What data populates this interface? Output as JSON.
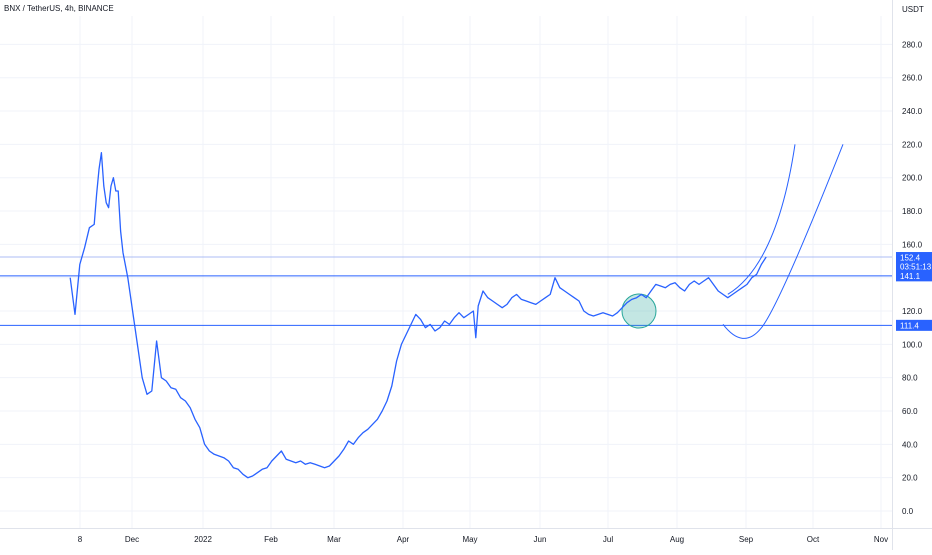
{
  "header": {
    "title": "BNX / TetherUS, 4h, BINANCE"
  },
  "chart_data": {
    "type": "line",
    "title": "BNX / TetherUS, 4h, BINANCE",
    "currency_label": "USDT",
    "y_ticks": [
      "0.0",
      "20.0",
      "40.0",
      "60.0",
      "80.0",
      "100.0",
      "120.0",
      "140.0",
      "160.0",
      "180.0",
      "200.0",
      "220.0",
      "240.0",
      "260.0",
      "280.0"
    ],
    "ylim": [
      -5,
      300
    ],
    "x_ticks": [
      "8",
      "Dec",
      "2022",
      "Feb",
      "Mar",
      "Apr",
      "May",
      "Jun",
      "Jul",
      "Aug",
      "Sep",
      "Oct",
      "Nov"
    ],
    "grid": true,
    "series": [
      {
        "color": "#2962ff",
        "points": [
          [
            -2,
            140
          ],
          [
            0,
            118
          ],
          [
            2,
            148
          ],
          [
            4,
            158
          ],
          [
            6,
            170
          ],
          [
            8,
            172
          ],
          [
            9,
            190
          ],
          [
            10,
            205
          ],
          [
            11,
            215
          ],
          [
            12,
            195
          ],
          [
            13,
            185
          ],
          [
            14,
            182
          ],
          [
            15,
            195
          ],
          [
            16,
            200
          ],
          [
            17,
            192
          ],
          [
            18,
            192
          ],
          [
            19,
            168
          ],
          [
            20,
            155
          ],
          [
            22,
            140
          ],
          [
            24,
            120
          ],
          [
            26,
            100
          ],
          [
            28,
            80
          ],
          [
            30,
            70
          ],
          [
            32,
            72
          ],
          [
            34,
            102
          ],
          [
            36,
            80
          ],
          [
            38,
            78
          ],
          [
            40,
            74
          ],
          [
            42,
            73
          ],
          [
            44,
            68
          ],
          [
            46,
            66
          ],
          [
            48,
            62
          ],
          [
            50,
            55
          ],
          [
            52,
            50
          ],
          [
            54,
            40
          ],
          [
            56,
            36
          ],
          [
            58,
            34
          ],
          [
            60,
            33
          ],
          [
            62,
            32
          ],
          [
            64,
            30
          ],
          [
            66,
            26
          ],
          [
            68,
            25
          ],
          [
            70,
            22
          ],
          [
            72,
            20
          ],
          [
            74,
            21
          ],
          [
            76,
            23
          ],
          [
            78,
            25
          ],
          [
            80,
            26
          ],
          [
            82,
            30
          ],
          [
            84,
            33
          ],
          [
            86,
            36
          ],
          [
            88,
            31
          ],
          [
            90,
            30
          ],
          [
            92,
            29
          ],
          [
            94,
            30
          ],
          [
            96,
            28
          ],
          [
            98,
            29
          ],
          [
            100,
            28
          ],
          [
            102,
            27
          ],
          [
            104,
            26
          ],
          [
            106,
            27
          ],
          [
            108,
            30
          ],
          [
            110,
            33
          ],
          [
            112,
            37
          ],
          [
            114,
            42
          ],
          [
            116,
            40
          ],
          [
            118,
            44
          ],
          [
            120,
            47
          ],
          [
            122,
            49
          ],
          [
            124,
            52
          ],
          [
            126,
            55
          ],
          [
            128,
            60
          ],
          [
            130,
            66
          ],
          [
            132,
            75
          ],
          [
            134,
            90
          ],
          [
            136,
            100
          ],
          [
            138,
            106
          ],
          [
            140,
            112
          ],
          [
            142,
            118
          ],
          [
            144,
            115
          ],
          [
            146,
            110
          ],
          [
            148,
            112
          ],
          [
            150,
            108
          ],
          [
            152,
            110
          ],
          [
            154,
            114
          ],
          [
            156,
            112
          ],
          [
            158,
            116
          ],
          [
            160,
            119
          ],
          [
            162,
            116
          ],
          [
            164,
            118
          ],
          [
            166,
            120
          ],
          [
            167,
            104
          ],
          [
            168,
            123
          ],
          [
            170,
            132
          ],
          [
            172,
            128
          ],
          [
            174,
            126
          ],
          [
            176,
            124
          ],
          [
            178,
            122
          ],
          [
            180,
            124
          ],
          [
            182,
            128
          ],
          [
            184,
            130
          ],
          [
            186,
            127
          ],
          [
            188,
            126
          ],
          [
            190,
            125
          ],
          [
            192,
            124
          ],
          [
            194,
            126
          ],
          [
            196,
            128
          ],
          [
            198,
            130
          ],
          [
            200,
            140
          ],
          [
            202,
            134
          ],
          [
            204,
            132
          ],
          [
            206,
            130
          ],
          [
            208,
            128
          ],
          [
            210,
            126
          ],
          [
            212,
            120
          ],
          [
            214,
            118
          ],
          [
            216,
            117
          ],
          [
            218,
            118
          ],
          [
            220,
            119
          ],
          [
            222,
            118
          ],
          [
            224,
            117
          ],
          [
            226,
            119
          ],
          [
            228,
            122
          ],
          [
            230,
            125
          ],
          [
            232,
            127
          ],
          [
            234,
            128
          ],
          [
            236,
            130
          ],
          [
            238,
            128
          ],
          [
            240,
            132
          ],
          [
            242,
            136
          ],
          [
            244,
            135
          ],
          [
            246,
            134
          ],
          [
            248,
            136
          ],
          [
            250,
            137
          ],
          [
            252,
            134
          ],
          [
            254,
            132
          ],
          [
            256,
            136
          ],
          [
            258,
            138
          ],
          [
            260,
            136
          ],
          [
            262,
            138
          ],
          [
            264,
            140
          ],
          [
            266,
            136
          ],
          [
            268,
            132
          ],
          [
            270,
            130
          ],
          [
            272,
            128
          ],
          [
            274,
            130
          ],
          [
            276,
            132
          ],
          [
            278,
            134
          ],
          [
            280,
            136
          ],
          [
            282,
            140
          ],
          [
            284,
            142
          ],
          [
            286,
            148
          ],
          [
            288,
            152.4
          ]
        ]
      }
    ],
    "horizontal_lines": [
      {
        "value": 152.4,
        "color": "#90a8f0"
      },
      {
        "value": 141.1,
        "color": "#2962ff"
      },
      {
        "value": 111.4,
        "color": "#2962ff"
      }
    ],
    "price_tags": [
      {
        "value": 152.4,
        "label": "152.4",
        "sublabel": "03:51:13",
        "color": "#2962ff"
      },
      {
        "value": 141.1,
        "label": "141.1",
        "color": "#2962ff"
      },
      {
        "value": 111.4,
        "label": "111.4",
        "color": "#2962ff"
      }
    ],
    "annotations": {
      "highlight_circle": {
        "x": 235,
        "y": 120,
        "color": "#26a69a"
      },
      "projection_curves": [
        {
          "from": [
            272,
            130
          ],
          "to": [
            300,
            220
          ]
        },
        {
          "from": [
            270,
            112
          ],
          "to": [
            320,
            220
          ]
        }
      ]
    }
  }
}
